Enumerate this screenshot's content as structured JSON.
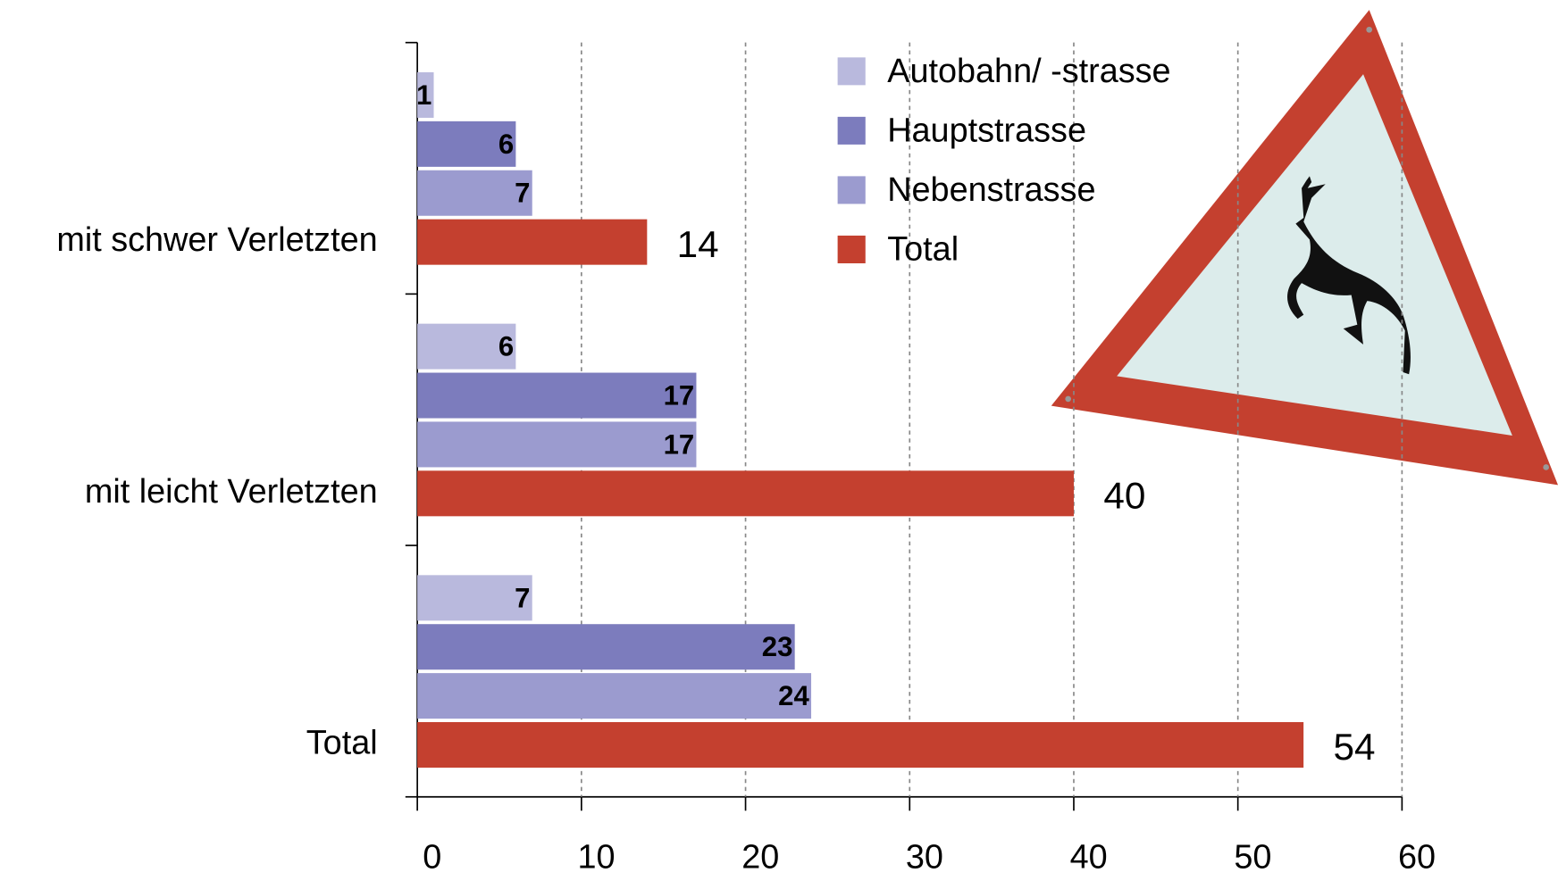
{
  "chart_data": {
    "type": "hbar",
    "categories": [
      "mit schwer Verletzten",
      "mit leicht Verletzten",
      "Total"
    ],
    "series": [
      {
        "name": "Autobahn/ -strasse",
        "color": "#b9b9dd",
        "values": [
          1,
          6,
          7
        ]
      },
      {
        "name": "Hauptstrasse",
        "color": "#7c7cbd",
        "values": [
          6,
          17,
          23
        ]
      },
      {
        "name": "Nebenstrasse",
        "color": "#9b9bcf",
        "values": [
          7,
          17,
          24
        ]
      },
      {
        "name": "Total",
        "color": "#c4402f",
        "values": [
          14,
          40,
          54
        ]
      }
    ],
    "xlim": [
      0,
      60
    ],
    "xticks": [
      0,
      10,
      20,
      30,
      40,
      50,
      60
    ],
    "grid": true,
    "legend": "top-right"
  }
}
